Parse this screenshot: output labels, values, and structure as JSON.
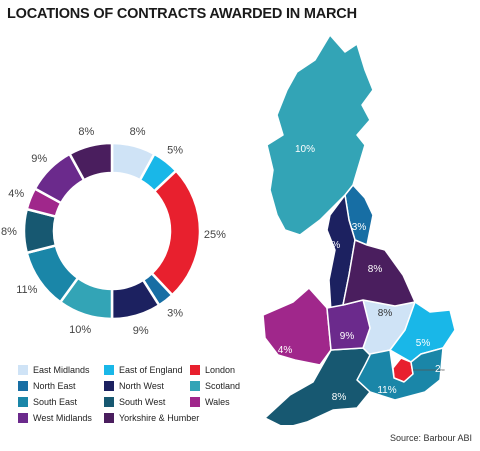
{
  "title": "LOCATIONS OF CONTRACTS AWARDED IN MARCH",
  "source": "Source: Barbour ABI",
  "chart_data": {
    "type": "pie",
    "categories": [
      "East Midlands",
      "East of England",
      "London",
      "North East",
      "North West",
      "Scotland",
      "South East",
      "South West",
      "Wales",
      "West Midlands",
      "Yorkshire & Humber"
    ],
    "values": [
      8,
      5,
      25,
      3,
      9,
      10,
      11,
      8,
      4,
      9,
      8
    ],
    "labels": [
      "8%",
      "5%",
      "25%",
      "3%",
      "9%",
      "10%",
      "11%",
      "8%",
      "4%",
      "9%",
      "8%"
    ],
    "colors": [
      "#cfe3f6",
      "#19b7e8",
      "#e8202e",
      "#176ea4",
      "#1c2160",
      "#33a4b6",
      "#1a86a8",
      "#175871",
      "#a0278b",
      "#6b2a8c",
      "#4a1e5e"
    ],
    "legend_position": "bottom-left"
  }
}
